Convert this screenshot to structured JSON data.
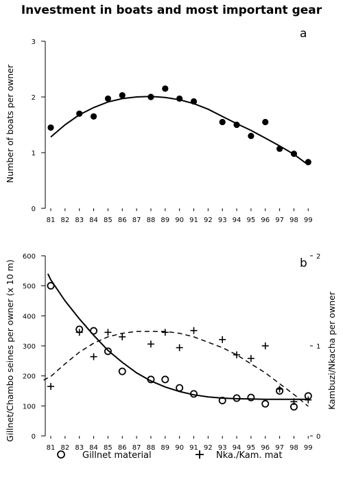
{
  "title": "Investment in boats and most important gear",
  "chart_data": [
    {
      "type": "scatter",
      "panel_label": "a",
      "ylabel": "Number of boats per owner",
      "ylim": [
        0,
        3
      ],
      "yticks": [
        "0",
        "1",
        "2",
        "3"
      ],
      "x_labels": [
        "81",
        "82",
        "83",
        "84",
        "85",
        "86",
        "87",
        "88",
        "89",
        "90",
        "91",
        "92",
        "93",
        "94",
        "95",
        "96",
        "97",
        "98",
        "99"
      ],
      "series": [
        {
          "marker": "filled-circle",
          "points": [
            [
              81,
              1.45
            ],
            [
              83,
              1.7
            ],
            [
              84,
              1.65
            ],
            [
              85,
              1.97
            ],
            [
              86,
              2.03
            ],
            [
              88,
              2.0
            ],
            [
              89,
              2.15
            ],
            [
              90,
              1.97
            ],
            [
              91,
              1.92
            ],
            [
              93,
              1.55
            ],
            [
              94,
              1.5
            ],
            [
              95,
              1.3
            ],
            [
              96,
              1.55
            ],
            [
              97,
              1.07
            ],
            [
              98,
              0.98
            ],
            [
              99,
              0.83
            ]
          ]
        }
      ],
      "fit_lines": [
        {
          "style": "solid",
          "points": [
            [
              81,
              1.28
            ],
            [
              82,
              1.5
            ],
            [
              83,
              1.68
            ],
            [
              84,
              1.81
            ],
            [
              85,
              1.91
            ],
            [
              86,
              1.97
            ],
            [
              87,
              2.0
            ],
            [
              88,
              2.01
            ],
            [
              89,
              1.99
            ],
            [
              90,
              1.95
            ],
            [
              91,
              1.88
            ],
            [
              92,
              1.78
            ],
            [
              93,
              1.65
            ],
            [
              94,
              1.52
            ],
            [
              95,
              1.4
            ],
            [
              96,
              1.26
            ],
            [
              97,
              1.12
            ],
            [
              98,
              0.97
            ],
            [
              99,
              0.78
            ]
          ]
        }
      ]
    },
    {
      "type": "scatter",
      "panel_label": "b",
      "ylabel": "Gillnet/Chambo seines per owner (x 10 m)",
      "ylabel_right": "Kambuzi/Nkacha per owner",
      "ylim": [
        0,
        600
      ],
      "yticks": [
        "0",
        "100",
        "200",
        "300",
        "400",
        "500",
        "600"
      ],
      "ylim_right": [
        0,
        2
      ],
      "yticks_right": [
        "0",
        "1",
        "2"
      ],
      "x_labels": [
        "81",
        "82",
        "83",
        "84",
        "85",
        "86",
        "87",
        "88",
        "89",
        "90",
        "91",
        "92",
        "93",
        "94",
        "95",
        "96",
        "97",
        "98",
        "99"
      ],
      "series": [
        {
          "name": "Gillnet material",
          "marker": "open-circle",
          "axis": "left",
          "points": [
            [
              81,
              500
            ],
            [
              83,
              355
            ],
            [
              84,
              350
            ],
            [
              85,
              282
            ],
            [
              86,
              215
            ],
            [
              88,
              188
            ],
            [
              89,
              188
            ],
            [
              90,
              160
            ],
            [
              91,
              140
            ],
            [
              93,
              118
            ],
            [
              94,
              126
            ],
            [
              95,
              128
            ],
            [
              96,
              107
            ],
            [
              97,
              150
            ],
            [
              98,
              97
            ],
            [
              99,
              133
            ]
          ]
        },
        {
          "name": "Nka./Kam. mat",
          "marker": "plus",
          "axis": "right",
          "points": [
            [
              81,
              0.55
            ],
            [
              83,
              1.15
            ],
            [
              84,
              0.88
            ],
            [
              85,
              1.15
            ],
            [
              86,
              1.1
            ],
            [
              88,
              1.02
            ],
            [
              89,
              1.15
            ],
            [
              90,
              0.98
            ],
            [
              91,
              1.17
            ],
            [
              93,
              1.07
            ],
            [
              94,
              0.9
            ],
            [
              95,
              0.86
            ],
            [
              96,
              1.0
            ],
            [
              97,
              0.52
            ],
            [
              98,
              0.38
            ],
            [
              99,
              0.4
            ]
          ]
        }
      ],
      "fit_lines": [
        {
          "style": "solid",
          "axis": "left",
          "points": [
            [
              80.8,
              540
            ],
            [
              81,
              520
            ],
            [
              82,
              450
            ],
            [
              83,
              390
            ],
            [
              84,
              335
            ],
            [
              85,
              285
            ],
            [
              86,
              245
            ],
            [
              87,
              210
            ],
            [
              88,
              183
            ],
            [
              89,
              163
            ],
            [
              90,
              148
            ],
            [
              91,
              137
            ],
            [
              92,
              130
            ],
            [
              93,
              126
            ],
            [
              94,
              124
            ],
            [
              95,
              123
            ],
            [
              96,
              122
            ],
            [
              97,
              122
            ],
            [
              98,
              122
            ],
            [
              99,
              122
            ]
          ]
        },
        {
          "style": "dashed",
          "axis": "right",
          "points": [
            [
              80.5,
              0.62
            ],
            [
              81,
              0.66
            ],
            [
              82,
              0.8
            ],
            [
              83,
              0.93
            ],
            [
              84,
              1.03
            ],
            [
              85,
              1.1
            ],
            [
              86,
              1.14
            ],
            [
              87,
              1.16
            ],
            [
              88,
              1.16
            ],
            [
              89,
              1.16
            ],
            [
              90,
              1.14
            ],
            [
              91,
              1.1
            ],
            [
              92,
              1.04
            ],
            [
              93,
              0.98
            ],
            [
              94,
              0.9
            ],
            [
              95,
              0.8
            ],
            [
              96,
              0.7
            ],
            [
              97,
              0.58
            ],
            [
              98,
              0.46
            ],
            [
              99,
              0.33
            ]
          ]
        }
      ],
      "legend": {
        "placement": "bottom"
      }
    }
  ]
}
